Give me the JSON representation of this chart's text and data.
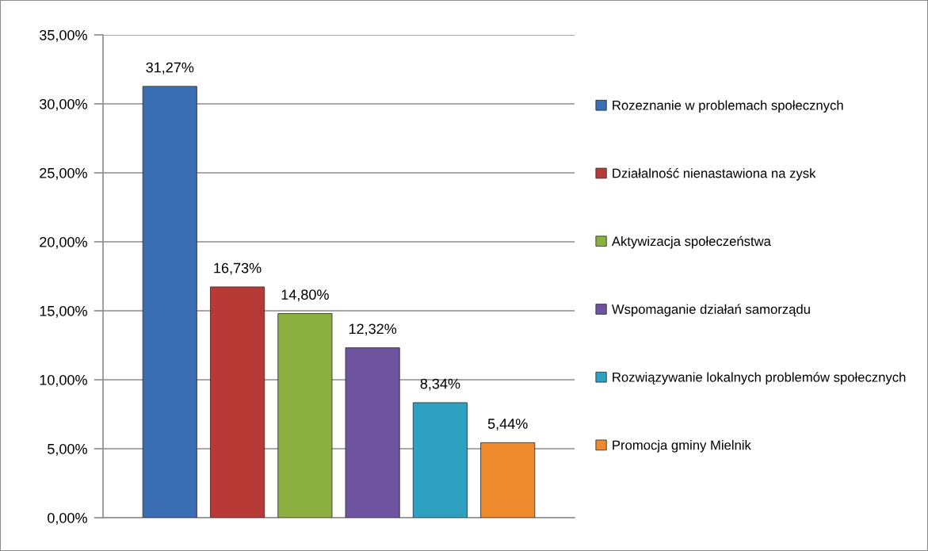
{
  "chart_data": {
    "type": "bar",
    "categories": [
      null
    ],
    "series": [
      {
        "name": "Rozeznanie w problemach społecznych",
        "color": "#3a6db3",
        "values": [
          31.27
        ],
        "value_labels": [
          "31,27%"
        ]
      },
      {
        "name": "Działalność nienastawiona na zysk",
        "color": "#b83a37",
        "values": [
          16.73
        ],
        "value_labels": [
          "16,73%"
        ]
      },
      {
        "name": "Aktywizacja społeczeństwa",
        "color": "#8cb040",
        "values": [
          14.8
        ],
        "value_labels": [
          "14,80%"
        ]
      },
      {
        "name": "Wspomaganie działań samorządu",
        "color": "#6e53a0",
        "values": [
          12.32
        ],
        "value_labels": [
          "12,32%"
        ]
      },
      {
        "name": "Rozwiązywanie lokalnych problemów społecznych",
        "color": "#30a0c0",
        "values": [
          8.34
        ],
        "value_labels": [
          "8,34%"
        ]
      },
      {
        "name": "Promocja gminy Mielnik",
        "color": "#ef8a2e",
        "values": [
          5.44
        ],
        "value_labels": [
          "5,44%"
        ]
      }
    ],
    "ylim": [
      0,
      35
    ],
    "yticks": [
      {
        "value": 0,
        "label": "0,00%"
      },
      {
        "value": 5,
        "label": "5,00%"
      },
      {
        "value": 10,
        "label": "10,00%"
      },
      {
        "value": 15,
        "label": "15,00%"
      },
      {
        "value": 20,
        "label": "20,00%"
      },
      {
        "value": 25,
        "label": "25,00%"
      },
      {
        "value": 30,
        "label": "30,00%"
      },
      {
        "value": 35,
        "label": "35,00%"
      }
    ],
    "grid": "y",
    "legend": "right",
    "tick_labels": "y"
  }
}
